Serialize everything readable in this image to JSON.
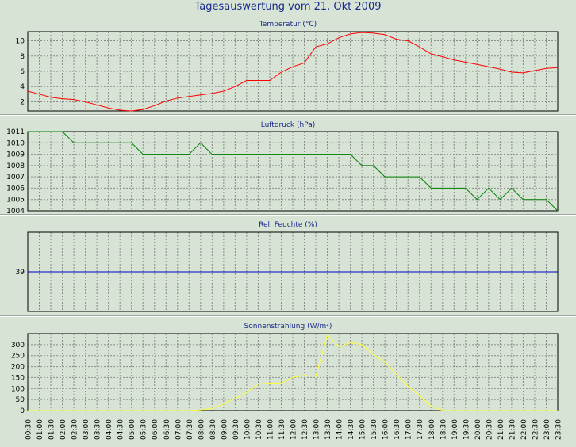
{
  "page": {
    "title": "Tagesauswertung vom 21. Okt 2009"
  },
  "x_categories": [
    "00:30",
    "01:00",
    "01:30",
    "02:00",
    "02:30",
    "03:00",
    "03:30",
    "04:00",
    "04:30",
    "05:00",
    "05:30",
    "06:00",
    "06:30",
    "07:00",
    "07:30",
    "08:00",
    "08:30",
    "09:00",
    "09:30",
    "10:00",
    "10:30",
    "11:00",
    "11:30",
    "12:00",
    "12:30",
    "13:00",
    "13:30",
    "14:00",
    "14:30",
    "15:00",
    "15:30",
    "16:00",
    "16:30",
    "17:00",
    "17:30",
    "18:00",
    "18:30",
    "19:00",
    "19:30",
    "20:00",
    "20:30",
    "21:00",
    "21:30",
    "22:00",
    "22:30",
    "23:00",
    "23:30"
  ],
  "chart_data": [
    {
      "type": "line",
      "title": "Temperatur (°C)",
      "color": "#ff0000",
      "ylim": [
        0.8,
        11.2
      ],
      "y_ticks": [
        2,
        4,
        6,
        8,
        10
      ],
      "grid": true,
      "series": [
        {
          "values": [
            3.4,
            3.0,
            2.6,
            2.4,
            2.3,
            2.0,
            1.6,
            1.2,
            0.9,
            0.8,
            1.0,
            1.5,
            2.1,
            2.5,
            2.7,
            2.9,
            3.1,
            3.4,
            4.0,
            4.8,
            4.8,
            4.8,
            5.9,
            6.6,
            7.1,
            9.2,
            9.6,
            10.4,
            10.9,
            11.1,
            11.0,
            10.8,
            10.2,
            10.0,
            9.2,
            8.3,
            7.9,
            7.5,
            7.2,
            6.9,
            6.6,
            6.3,
            5.9,
            5.8,
            6.1,
            6.4,
            6.5
          ]
        }
      ]
    },
    {
      "type": "line",
      "title": "Luftdruck (hPa)",
      "color": "#008000",
      "ylim": [
        1004,
        1011
      ],
      "y_ticks": [
        1004,
        1005,
        1006,
        1007,
        1008,
        1009,
        1010,
        1011
      ],
      "grid": true,
      "series": [
        {
          "values": [
            1011,
            1011,
            1011,
            1011,
            1010,
            1010,
            1010,
            1010,
            1010,
            1010,
            1009,
            1009,
            1009,
            1009,
            1009,
            1010,
            1009,
            1009,
            1009,
            1009,
            1009,
            1009,
            1009,
            1009,
            1009,
            1009,
            1009,
            1009,
            1009,
            1008,
            1008,
            1007,
            1007,
            1007,
            1007,
            1006,
            1006,
            1006,
            1006,
            1005,
            1006,
            1005,
            1006,
            1005,
            1005,
            1005,
            1004
          ]
        }
      ]
    },
    {
      "type": "line",
      "title": "Rel. Feuchte (%)",
      "color": "#0000cc",
      "ylim": [
        34,
        44
      ],
      "y_ticks": [
        39
      ],
      "grid": true,
      "series": [
        {
          "values": [
            39,
            39,
            39,
            39,
            39,
            39,
            39,
            39,
            39,
            39,
            39,
            39,
            39,
            39,
            39,
            39,
            39,
            39,
            39,
            39,
            39,
            39,
            39,
            39,
            39,
            39,
            39,
            39,
            39,
            39,
            39,
            39,
            39,
            39,
            39,
            39,
            39,
            39,
            39,
            39,
            39,
            39,
            39,
            39,
            39,
            39,
            39
          ]
        }
      ]
    },
    {
      "type": "line",
      "title": "Sonnenstrahlung (W/m²)",
      "color": "#ffff33",
      "ylim": [
        0,
        350
      ],
      "y_ticks": [
        0,
        50,
        100,
        150,
        200,
        250,
        300
      ],
      "grid": true,
      "series": [
        {
          "values": [
            0,
            0,
            0,
            0,
            0,
            0,
            0,
            0,
            0,
            0,
            0,
            0,
            0,
            0,
            0,
            3,
            10,
            30,
            55,
            85,
            120,
            125,
            125,
            150,
            160,
            155,
            345,
            290,
            310,
            300,
            255,
            220,
            165,
            110,
            70,
            20,
            0,
            0,
            0,
            0,
            0,
            0,
            0,
            0,
            0,
            0,
            0
          ]
        }
      ]
    }
  ]
}
